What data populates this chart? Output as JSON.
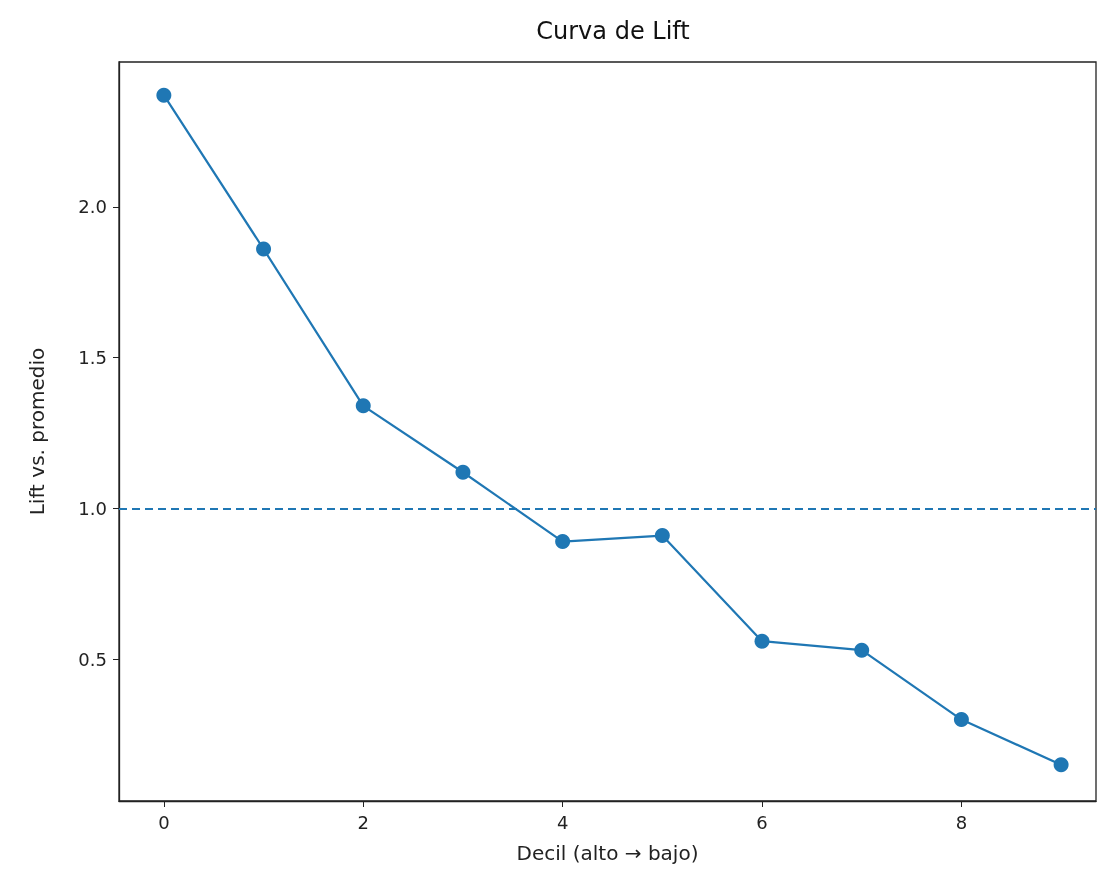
{
  "chart_data": {
    "type": "line",
    "title": "Curva de Lift",
    "xlabel": "Decil (alto → bajo)",
    "ylabel": "Lift vs. promedio",
    "x": [
      0,
      1,
      2,
      3,
      4,
      5,
      6,
      7,
      8,
      9
    ],
    "series": [
      {
        "color": "#1f77b4",
        "values": [
          2.37,
          1.86,
          1.34,
          1.12,
          0.89,
          0.91,
          0.56,
          0.53,
          0.3,
          0.15
        ]
      }
    ],
    "xlim": [
      -0.45,
      9.35
    ],
    "xticks": [
      0,
      2,
      4,
      6,
      8
    ],
    "ylim": [
      0.03,
      2.48
    ],
    "yticks": [
      0.5,
      {
        "value": 1,
        "label": "1.0"
      },
      1.5,
      {
        "value": 2,
        "label": "2.0"
      }
    ],
    "ref_lines": [
      {
        "axis": "y",
        "value": 1.0,
        "color": "#1f77b4",
        "line_style": "dashed"
      }
    ],
    "marker": "circle",
    "line_style": "solid",
    "grid": false
  }
}
